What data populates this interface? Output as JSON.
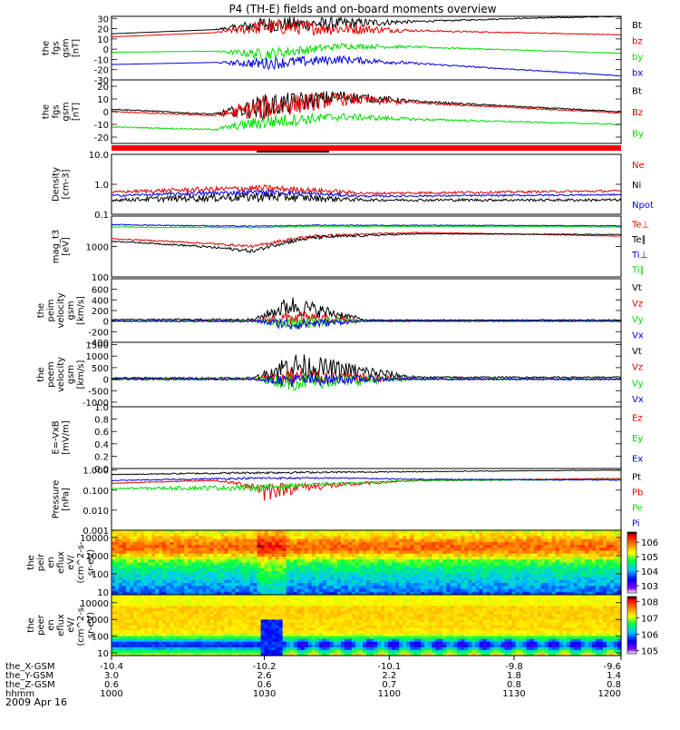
{
  "title": "P4 (TH-E) fields and on-board moments overview",
  "date": "2009 Apr 16",
  "colors": {
    "black": "#000000",
    "red": "#e00000",
    "green": "#00dd00",
    "blue": "#0000e0",
    "white": "#ffffff"
  },
  "chart_data": [
    {
      "type": "line",
      "panel": "the_fgs_gsm",
      "ylabel": [
        "the",
        "fgs",
        "gsm",
        "[nT]"
      ],
      "yticks": [
        "30",
        "20",
        "10",
        "0",
        "-10",
        "-20",
        "-30"
      ],
      "ylim": [
        -30,
        32
      ],
      "series": [
        {
          "name": "Bt",
          "color": "#000000",
          "x": [
            0,
            0.2,
            0.3,
            0.45,
            0.6,
            0.8,
            1
          ],
          "y": [
            15,
            19,
            24,
            25,
            27,
            30,
            32
          ],
          "noise": [
            0,
            0,
            8,
            6,
            1,
            0.5,
            0.5
          ]
        },
        {
          "name": "bz",
          "color": "#e00000",
          "x": [
            0,
            0.2,
            0.3,
            0.45,
            0.6,
            0.8,
            1
          ],
          "y": [
            12,
            16,
            22,
            20,
            18,
            16,
            14
          ],
          "noise": [
            0,
            0,
            8,
            6,
            1,
            0.5,
            0.5
          ]
        },
        {
          "name": "by",
          "color": "#00dd00",
          "x": [
            0,
            0.2,
            0.3,
            0.45,
            0.6,
            0.8,
            1
          ],
          "y": [
            -3,
            -2,
            -5,
            3,
            2,
            -1,
            -4
          ],
          "noise": [
            0,
            0,
            6,
            3,
            1,
            0.5,
            0.5
          ]
        },
        {
          "name": "bx",
          "color": "#0000e0",
          "x": [
            0,
            0.2,
            0.3,
            0.45,
            0.6,
            0.8,
            1
          ],
          "y": [
            -15,
            -13,
            -14,
            -10,
            -14,
            -20,
            -26
          ],
          "noise": [
            0,
            0,
            6,
            4,
            1,
            0.5,
            0.5
          ]
        }
      ]
    },
    {
      "type": "line",
      "panel": "the_fgs_gsm_perp_par",
      "ylabel": [
        "the",
        "fgs",
        "gsm",
        "[nT]"
      ],
      "yticks": [
        "20",
        "10",
        "0",
        "-10",
        "-20"
      ],
      "ylim": [
        -25,
        25
      ],
      "series": [
        {
          "name": "Bt",
          "color": "#000000",
          "x": [
            0,
            0.2,
            0.3,
            0.45,
            0.6,
            0.8,
            1
          ],
          "y": [
            2,
            -2,
            4,
            12,
            8,
            4,
            0
          ],
          "noise": [
            0.5,
            0.5,
            10,
            5,
            1,
            0.5,
            0.5
          ]
        },
        {
          "name": "Bz",
          "color": "#e00000",
          "x": [
            0,
            0.2,
            0.3,
            0.45,
            0.6,
            0.8,
            1
          ],
          "y": [
            0,
            -3,
            3,
            10,
            7,
            3,
            -1
          ],
          "noise": [
            0.5,
            0.5,
            10,
            5,
            1,
            0.5,
            0.5
          ]
        },
        {
          "name": "By",
          "color": "#00dd00",
          "x": [
            0,
            0.2,
            0.3,
            0.45,
            0.6,
            0.8,
            1
          ],
          "y": [
            -12,
            -14,
            -8,
            -4,
            -6,
            -8,
            -10
          ],
          "noise": [
            0.5,
            0.5,
            6,
            3,
            1,
            0.5,
            0.5
          ]
        }
      ]
    },
    {
      "type": "line",
      "panel": "the_density",
      "ylabel": [
        "Density",
        "[cm-3]"
      ],
      "yticks": [
        "10.0",
        "1.0",
        "0.1"
      ],
      "yscale": "log",
      "ylim": [
        0.1,
        10
      ],
      "series": [
        {
          "name": "Ne",
          "color": "#e00000",
          "x": [
            0,
            0.3,
            0.5,
            1
          ],
          "y": [
            0.55,
            0.75,
            0.5,
            0.6
          ],
          "noise": [
            0.05,
            0.2,
            0.05,
            0.05
          ]
        },
        {
          "name": "Ni",
          "color": "#000000",
          "x": [
            0,
            0.3,
            0.5,
            1
          ],
          "y": [
            0.3,
            0.4,
            0.3,
            0.3
          ],
          "noise": [
            0.03,
            0.15,
            0.03,
            0.03
          ]
        },
        {
          "name": "Npot",
          "color": "#0000e0",
          "x": [
            0,
            0.3,
            0.5,
            1
          ],
          "y": [
            0.42,
            0.55,
            0.4,
            0.45
          ],
          "noise": [
            0.03,
            0.1,
            0.03,
            0.03
          ]
        }
      ]
    },
    {
      "type": "line",
      "panel": "the_temperature",
      "ylabel": [
        "mag_t3",
        "[eV]"
      ],
      "yticks": [
        "1000",
        "100"
      ],
      "yscale": "log",
      "ylim": [
        100,
        10000
      ],
      "series": [
        {
          "name": "Te⊥",
          "color": "#e00000",
          "x": [
            0,
            0.28,
            0.4,
            0.6,
            1
          ],
          "y": [
            1800,
            1000,
            2200,
            2900,
            2200
          ],
          "noise": [
            60,
            100,
            300,
            80,
            60
          ]
        },
        {
          "name": "Te∥",
          "color": "#000000",
          "x": [
            0,
            0.28,
            0.4,
            0.6,
            1
          ],
          "y": [
            1500,
            700,
            2000,
            2600,
            2500
          ],
          "noise": [
            60,
            100,
            300,
            80,
            60
          ]
        },
        {
          "name": "Ti⊥",
          "color": "#0000e0",
          "x": [
            0,
            0.28,
            0.4,
            0.6,
            1
          ],
          "y": [
            5200,
            4600,
            5000,
            5000,
            4800
          ],
          "noise": [
            200,
            200,
            200,
            150,
            150
          ]
        },
        {
          "name": "Ti∥",
          "color": "#00dd00",
          "x": [
            0,
            0.28,
            0.4,
            0.6,
            1
          ],
          "y": [
            4400,
            4200,
            4600,
            4600,
            4400
          ],
          "noise": [
            200,
            200,
            200,
            150,
            150
          ]
        }
      ]
    },
    {
      "type": "line",
      "panel": "the_peim_velocity",
      "ylabel": [
        "the",
        "peim",
        "velocity",
        "gsm",
        "[km/s]"
      ],
      "yticks": [
        "600",
        "400",
        "200",
        "0",
        "-200",
        "-400"
      ],
      "ylim": [
        -400,
        800
      ],
      "series": [
        {
          "name": "Vt",
          "color": "#000000",
          "x": [
            0,
            0.28,
            0.35,
            0.45,
            0.5,
            1
          ],
          "y": [
            30,
            30,
            300,
            120,
            20,
            20
          ],
          "noise": [
            10,
            20,
            200,
            80,
            10,
            10
          ]
        },
        {
          "name": "Vz",
          "color": "#e00000",
          "x": [
            0,
            0.28,
            0.35,
            0.45,
            0.5,
            1
          ],
          "y": [
            0,
            0,
            60,
            20,
            0,
            0
          ],
          "noise": [
            10,
            20,
            150,
            60,
            10,
            10
          ]
        },
        {
          "name": "Vy",
          "color": "#00dd00",
          "x": [
            0,
            0.28,
            0.35,
            0.45,
            0.5,
            1
          ],
          "y": [
            0,
            0,
            -40,
            0,
            0,
            0
          ],
          "noise": [
            10,
            20,
            120,
            60,
            10,
            10
          ]
        },
        {
          "name": "Vx",
          "color": "#0000e0",
          "x": [
            0,
            0.28,
            0.35,
            0.45,
            0.5,
            1
          ],
          "y": [
            0,
            0,
            -60,
            -20,
            0,
            0
          ],
          "noise": [
            10,
            20,
            120,
            50,
            10,
            10
          ]
        }
      ]
    },
    {
      "type": "line",
      "panel": "the_peem_velocity",
      "ylabel": [
        "the",
        "peem",
        "velocity",
        "gsm",
        "[km/s]"
      ],
      "yticks": [
        "1500",
        "1000",
        "500",
        "0",
        "-500",
        "-1000"
      ],
      "ylim": [
        -1200,
        1600
      ],
      "series": [
        {
          "name": "Vt",
          "color": "#000000",
          "x": [
            0,
            0.28,
            0.35,
            0.5,
            0.6,
            1
          ],
          "y": [
            50,
            50,
            600,
            300,
            80,
            80
          ],
          "noise": [
            30,
            40,
            600,
            300,
            40,
            30
          ]
        },
        {
          "name": "Vz",
          "color": "#e00000",
          "x": [
            0,
            0.28,
            0.35,
            0.5,
            0.6,
            1
          ],
          "y": [
            0,
            0,
            100,
            50,
            0,
            0
          ],
          "noise": [
            40,
            40,
            400,
            200,
            40,
            40
          ]
        },
        {
          "name": "Vy",
          "color": "#00dd00",
          "x": [
            0,
            0.28,
            0.35,
            0.5,
            0.6,
            1
          ],
          "y": [
            0,
            0,
            -100,
            -50,
            0,
            0
          ],
          "noise": [
            40,
            40,
            400,
            200,
            40,
            40
          ]
        },
        {
          "name": "Vx",
          "color": "#0000e0",
          "x": [
            0,
            0.28,
            0.35,
            0.5,
            0.6,
            1
          ],
          "y": [
            0,
            0,
            -50,
            0,
            0,
            0
          ],
          "noise": [
            40,
            40,
            300,
            150,
            40,
            40
          ]
        }
      ]
    },
    {
      "type": "line",
      "panel": "the_e_vxb",
      "ylabel": [
        "E=-VxB",
        "[mV/m]"
      ],
      "yticks": [
        "1.0",
        "0.8",
        "0.6",
        "0.4",
        "0.2",
        "0.0"
      ],
      "ylim": [
        0,
        1
      ],
      "series": [
        {
          "name": "Ez",
          "color": "#e00000",
          "x": [],
          "y": []
        },
        {
          "name": "Ey",
          "color": "#00dd00",
          "x": [],
          "y": []
        },
        {
          "name": "Ex",
          "color": "#0000e0",
          "x": [],
          "y": []
        }
      ]
    },
    {
      "type": "line",
      "panel": "the_pressure",
      "ylabel": [
        "Pressure",
        "[nPa]"
      ],
      "yticks": [
        "1.000",
        "0.100",
        "0.010",
        "0.001"
      ],
      "yscale": "log",
      "ylim": [
        0.001,
        1.2
      ],
      "series": [
        {
          "name": "Pt",
          "color": "#000000",
          "x": [
            0,
            0.3,
            0.5,
            1
          ],
          "y": [
            0.6,
            0.75,
            0.8,
            1.0
          ],
          "noise": [
            0.02,
            0.1,
            0.05,
            0.03
          ]
        },
        {
          "name": "Pb",
          "color": "#e00000",
          "x": [
            0,
            0.2,
            0.3,
            0.45,
            0.6,
            1
          ],
          "y": [
            0.22,
            0.3,
            0.12,
            0.18,
            0.3,
            0.38
          ],
          "noise": [
            0.01,
            0.01,
            0.1,
            0.05,
            0.02,
            0.02
          ]
        },
        {
          "name": "Pe",
          "color": "#00dd00",
          "x": [
            0,
            0.3,
            0.45,
            0.6,
            1
          ],
          "y": [
            0.12,
            0.14,
            0.22,
            0.3,
            0.34
          ],
          "noise": [
            0.01,
            0.05,
            0.03,
            0.02,
            0.02
          ]
        },
        {
          "name": "Pi",
          "color": "#0000e0",
          "x": [
            0,
            0.3,
            0.45,
            0.6,
            1
          ],
          "y": [
            0.3,
            0.4,
            0.4,
            0.35,
            0.32
          ],
          "noise": [
            0.01,
            0.05,
            0.03,
            0.02,
            0.02
          ]
        }
      ]
    },
    {
      "type": "heatmap",
      "panel": "the_peir_en_eflux",
      "ylabel": [
        "the",
        "peir",
        "en",
        "eflux",
        "eV/",
        "(cm^2-s-",
        "sr-eV)"
      ],
      "yticks": [
        "10000",
        "1000",
        "100",
        "10"
      ],
      "yscale": "log",
      "ylim": [
        7,
        25000
      ],
      "colorbar_ticks": [
        "10^6",
        "10^5",
        "10^4",
        "10^3"
      ],
      "colorbar_range": [
        2.5,
        6.7
      ]
    },
    {
      "type": "heatmap",
      "panel": "the_peer_en_eflux",
      "ylabel": [
        "the",
        "peer",
        "en",
        "eflux",
        "eV/",
        "(cm^2-s-",
        "sr-eV)"
      ],
      "yticks": [
        "10000",
        "1000",
        "100",
        "10"
      ],
      "yscale": "log",
      "ylim": [
        7,
        30000
      ],
      "colorbar_ticks": [
        "10^8",
        "10^7",
        "10^6",
        "10^5"
      ],
      "colorbar_range": [
        4.8,
        8.3
      ]
    }
  ],
  "x_axis": {
    "rows": [
      {
        "label": "the_X-GSM",
        "values": [
          "-10.4",
          "-10.2",
          "-10.1",
          "-9.8",
          "-9.6"
        ]
      },
      {
        "label": "the_Y-GSM",
        "values": [
          "3.0",
          "2.6",
          "2.2",
          "1.8",
          "1.4"
        ]
      },
      {
        "label": "the_Z-GSM",
        "values": [
          "0.6",
          "0.6",
          "0.7",
          "0.8",
          "0.8"
        ]
      },
      {
        "label": "hhmm",
        "values": [
          "1000",
          "1030",
          "1100",
          "1130",
          "1200"
        ]
      }
    ]
  }
}
